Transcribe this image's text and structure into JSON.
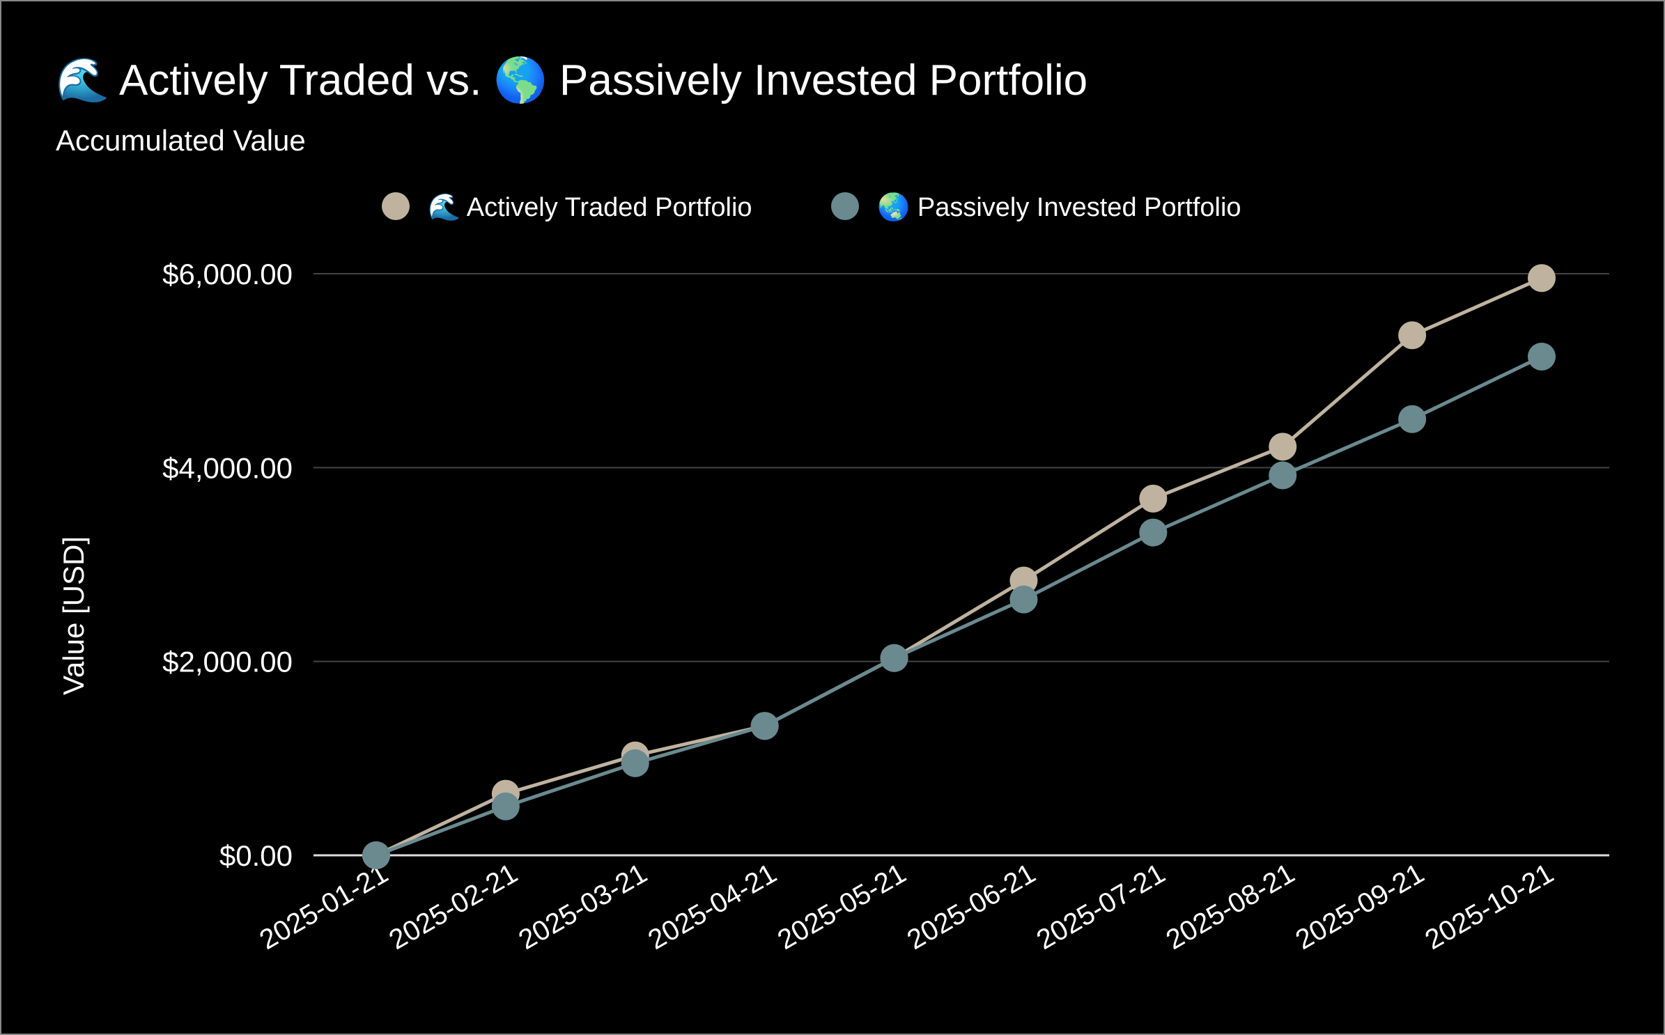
{
  "chart_data": {
    "type": "line",
    "title": "🌊 Actively Traded vs. 🌎 Passively Invested Portfolio",
    "subtitle": "Accumulated Value",
    "xlabel": "",
    "ylabel": "Value [USD]",
    "ylim": [
      0,
      6000
    ],
    "yticks": [
      0,
      2000,
      4000,
      6000
    ],
    "ytick_labels": [
      "$0.00",
      "$2,000.00",
      "$4,000.00",
      "$6,000.00"
    ],
    "grid": true,
    "legend_placement": "top-center",
    "categories": [
      "2025-01-21",
      "2025-02-21",
      "2025-03-21",
      "2025-04-21",
      "2025-05-21",
      "2025-06-21",
      "2025-07-21",
      "2025-08-21",
      "2025-09-21",
      "2025-10-21"
    ],
    "series": [
      {
        "name": "🌊 Actively Traded Portfolio",
        "color": "#bfb3a0",
        "values": [
          0,
          635,
          1030,
          1335,
          2035,
          2835,
          3680,
          4215,
          5365,
          5955
        ]
      },
      {
        "name": "🌏 Passively Invested Portfolio",
        "color": "#6a8a90",
        "values": [
          0,
          505,
          950,
          1335,
          2035,
          2640,
          3330,
          3920,
          4500,
          5145
        ]
      }
    ]
  }
}
